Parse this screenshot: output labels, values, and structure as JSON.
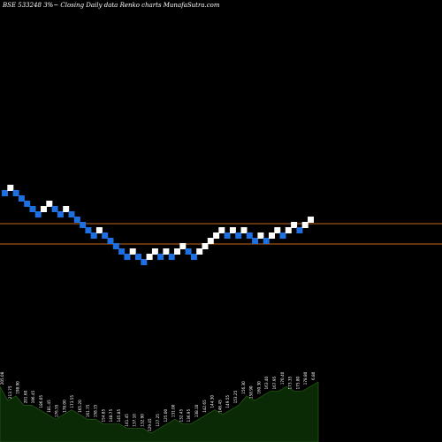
{
  "header": {
    "title": "BSE 533248  3%~  Closing Daily data  Renko  charts MunafaSutra.com"
  },
  "colors": {
    "background": "#000000",
    "up_brick": "#ffffff",
    "down_brick": "#1e6fe0",
    "reference_line": "#c8691c",
    "volume_fill": "#0a2a06",
    "volume_stroke": "#2e6a1c",
    "label_text": "#ffffff"
  },
  "chart_data": {
    "type": "renko",
    "title": "BSE 533248  3%~  Closing Daily data  Renko  charts MunafaSutra.com",
    "brick_percent": 3,
    "reference_lines": 2,
    "bricks": [
      {
        "direction": "down",
        "level": 0
      },
      {
        "direction": "up",
        "level": 1
      },
      {
        "direction": "down",
        "level": 0
      },
      {
        "direction": "down",
        "level": -1
      },
      {
        "direction": "down",
        "level": -2
      },
      {
        "direction": "down",
        "level": -3
      },
      {
        "direction": "down",
        "level": -4
      },
      {
        "direction": "up",
        "level": -3
      },
      {
        "direction": "up",
        "level": -2
      },
      {
        "direction": "down",
        "level": -3
      },
      {
        "direction": "down",
        "level": -4
      },
      {
        "direction": "up",
        "level": -3
      },
      {
        "direction": "down",
        "level": -4
      },
      {
        "direction": "down",
        "level": -5
      },
      {
        "direction": "down",
        "level": -6
      },
      {
        "direction": "down",
        "level": -7
      },
      {
        "direction": "down",
        "level": -8
      },
      {
        "direction": "up",
        "level": -7
      },
      {
        "direction": "down",
        "level": -8
      },
      {
        "direction": "down",
        "level": -9
      },
      {
        "direction": "down",
        "level": -10
      },
      {
        "direction": "down",
        "level": -11
      },
      {
        "direction": "down",
        "level": -12
      },
      {
        "direction": "up",
        "level": -11
      },
      {
        "direction": "down",
        "level": -12
      },
      {
        "direction": "down",
        "level": -13
      },
      {
        "direction": "up",
        "level": -12
      },
      {
        "direction": "up",
        "level": -11
      },
      {
        "direction": "down",
        "level": -12
      },
      {
        "direction": "up",
        "level": -11
      },
      {
        "direction": "down",
        "level": -12
      },
      {
        "direction": "up",
        "level": -11
      },
      {
        "direction": "up",
        "level": -10
      },
      {
        "direction": "down",
        "level": -11
      },
      {
        "direction": "down",
        "level": -12
      },
      {
        "direction": "up",
        "level": -11
      },
      {
        "direction": "up",
        "level": -10
      },
      {
        "direction": "up",
        "level": -9
      },
      {
        "direction": "up",
        "level": -8
      },
      {
        "direction": "up",
        "level": -7
      },
      {
        "direction": "down",
        "level": -8
      },
      {
        "direction": "up",
        "level": -7
      },
      {
        "direction": "down",
        "level": -8
      },
      {
        "direction": "up",
        "level": -7
      },
      {
        "direction": "down",
        "level": -8
      },
      {
        "direction": "down",
        "level": -9
      },
      {
        "direction": "up",
        "level": -8
      },
      {
        "direction": "down",
        "level": -9
      },
      {
        "direction": "up",
        "level": -8
      },
      {
        "direction": "up",
        "level": -7
      },
      {
        "direction": "down",
        "level": -8
      },
      {
        "direction": "up",
        "level": -7
      },
      {
        "direction": "up",
        "level": -6
      },
      {
        "direction": "down",
        "level": -7
      },
      {
        "direction": "up",
        "level": -6
      },
      {
        "direction": "up",
        "level": -5
      }
    ],
    "volume_profile": [
      10,
      7,
      8,
      6,
      6,
      5,
      4,
      3,
      4,
      5,
      4,
      3,
      3,
      2,
      2,
      2,
      1,
      1,
      1,
      0,
      1,
      2,
      3,
      2,
      2,
      3,
      4,
      5,
      4,
      5,
      6,
      8,
      7,
      8,
      9,
      9,
      10,
      9,
      9,
      10,
      11
    ],
    "volume_labels": [
      "205.08",
      "213.75",
      "198.90",
      "201.60",
      "196.45",
      "186.05",
      "181.45",
      "176.55",
      "178.00",
      "173.55",
      "165.20",
      "161.75",
      "158.15",
      "154.85",
      "148.75",
      "145.85",
      "141.45",
      "137.10",
      "132.90",
      "129.45",
      "127.25",
      "125.00",
      "131.00",
      "132.45",
      "136.95",
      "138.10",
      "142.65",
      "144.30",
      "146.45",
      "149.55",
      "153.25",
      "156.30",
      "158.90",
      "160.30",
      "163.40",
      "167.95",
      "170.40",
      "173.35",
      "175.80",
      "178.80",
      "6.80"
    ]
  }
}
